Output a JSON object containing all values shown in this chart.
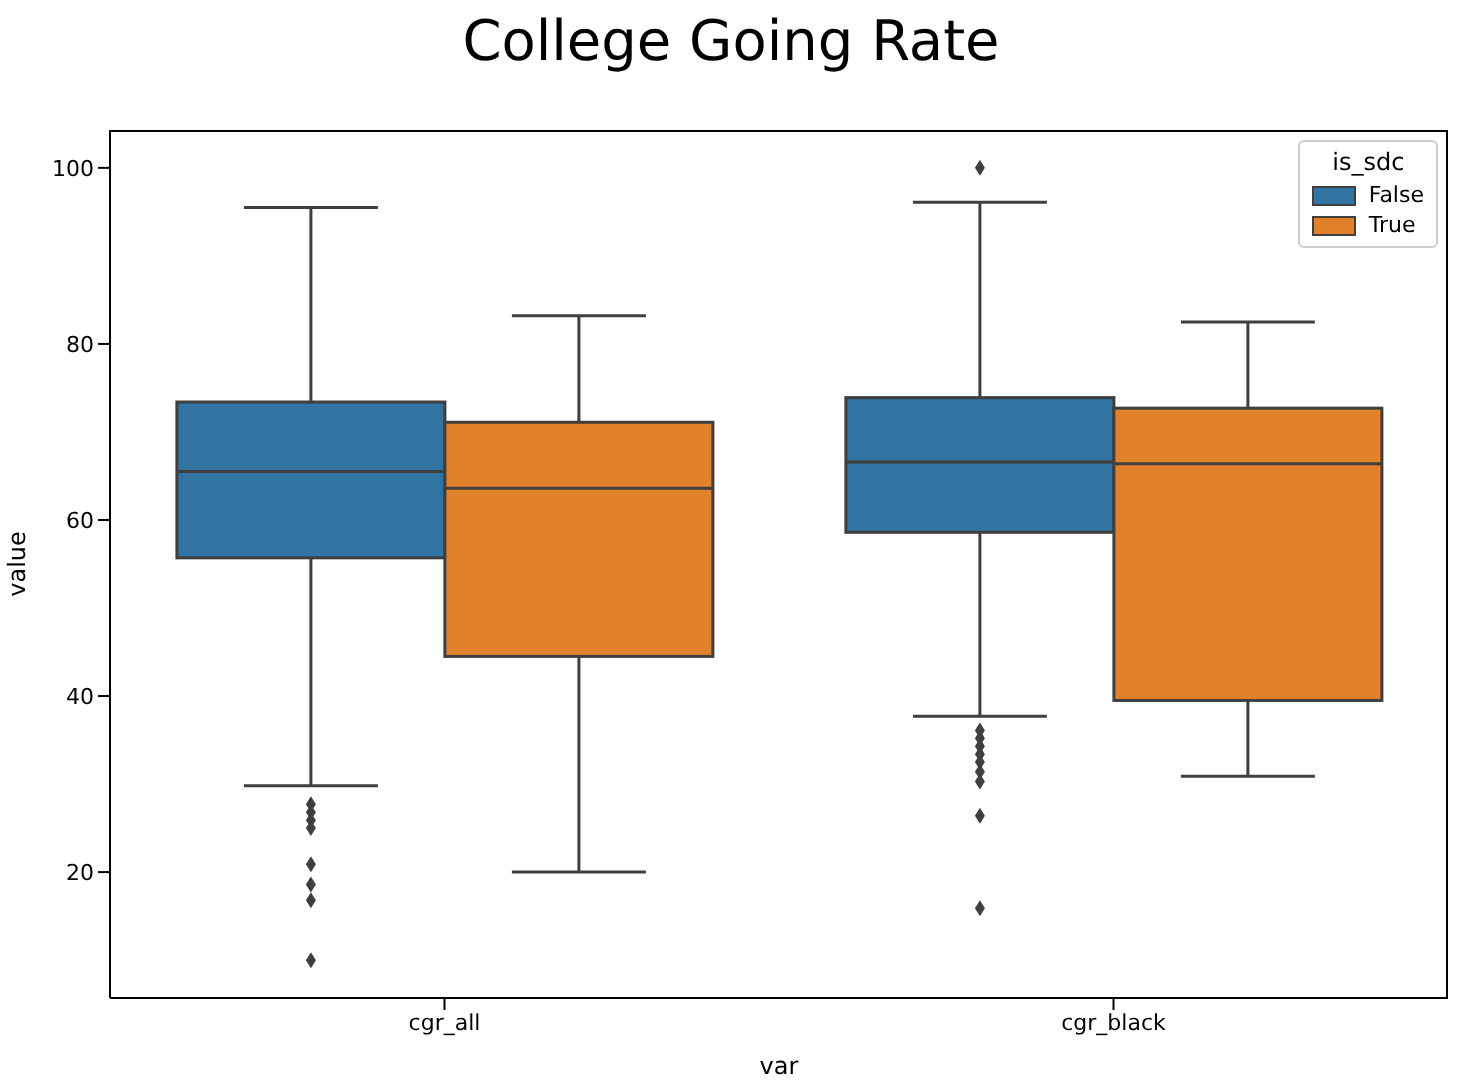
{
  "chart_data": {
    "type": "box",
    "title": "College Going Rate",
    "xlabel": "var",
    "ylabel": "value",
    "legend_title": "is_sdc",
    "categories": [
      "cgr_all",
      "cgr_black"
    ],
    "series": [
      {
        "name": "False",
        "color": "#3274a1",
        "boxes": [
          {
            "low": 29.8,
            "q1": 55.7,
            "median": 65.5,
            "q3": 73.4,
            "high": 95.5,
            "outliers": [
              27.7,
              26.8,
              25.9,
              25,
              20.9,
              18.6,
              16.8,
              10
            ]
          },
          {
            "low": 37.7,
            "q1": 58.6,
            "median": 66.6,
            "q3": 73.9,
            "high": 96.1,
            "outliers": [
              100,
              36.1,
              35.2,
              34.3,
              33.4,
              32.5,
              31.4,
              30.3,
              26.4,
              15.9
            ]
          }
        ]
      },
      {
        "name": "True",
        "color": "#e1812c",
        "boxes": [
          {
            "low": 20,
            "q1": 44.5,
            "median": 63.6,
            "q3": 71.1,
            "high": 83.2
          },
          {
            "low": 30.9,
            "q1": 39.5,
            "median": 66.4,
            "q3": 72.7,
            "high": 82.5
          }
        ]
      }
    ],
    "ylim": [
      5.7,
      104.3
    ],
    "yticks": [
      20,
      40,
      60,
      80,
      100
    ],
    "legend": "top right"
  }
}
